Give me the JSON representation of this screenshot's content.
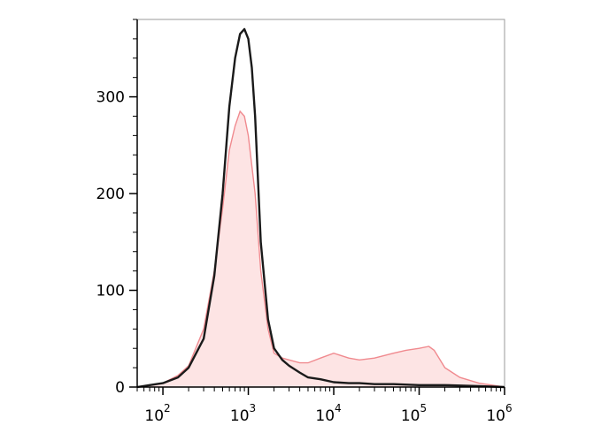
{
  "chart_data": {
    "type": "area",
    "title": "",
    "xlabel": "",
    "ylabel": "",
    "xscale": "log",
    "xlim": [
      50,
      1000000
    ],
    "ylim": [
      0,
      380
    ],
    "grid": false,
    "legend": "none",
    "y_ticks": [
      {
        "value": 0,
        "label": "0"
      },
      {
        "value": 100,
        "label": "100"
      },
      {
        "value": 200,
        "label": "200"
      },
      {
        "value": 300,
        "label": "300"
      }
    ],
    "x_ticks": [
      {
        "value": 100,
        "base": "10",
        "exp": "2"
      },
      {
        "value": 1000,
        "base": "10",
        "exp": "3"
      },
      {
        "value": 10000,
        "base": "10",
        "exp": "4"
      },
      {
        "value": 100000,
        "base": "10",
        "exp": "5"
      },
      {
        "value": 1000000,
        "base": "10",
        "exp": "6"
      }
    ],
    "series": [
      {
        "style": "filled",
        "color": "#f08a8f",
        "fill": "#fde4e4",
        "x": [
          50,
          70,
          100,
          150,
          200,
          300,
          400,
          500,
          600,
          700,
          800,
          900,
          1000,
          1200,
          1400,
          1700,
          2000,
          2500,
          3000,
          4000,
          5000,
          7000,
          10000,
          15000,
          20000,
          30000,
          50000,
          70000,
          100000,
          130000,
          150000,
          200000,
          300000,
          500000,
          1000000
        ],
        "y": [
          0,
          2,
          4,
          12,
          22,
          60,
          120,
          185,
          245,
          270,
          285,
          280,
          260,
          200,
          120,
          60,
          35,
          30,
          28,
          25,
          25,
          30,
          35,
          30,
          28,
          30,
          35,
          38,
          40,
          42,
          38,
          20,
          10,
          4,
          0
        ]
      },
      {
        "style": "line",
        "color": "#1a1a1a",
        "x": [
          50,
          70,
          100,
          150,
          200,
          300,
          400,
          500,
          600,
          700,
          800,
          900,
          1000,
          1100,
          1200,
          1400,
          1700,
          2000,
          2500,
          3000,
          4000,
          5000,
          7000,
          10000,
          15000,
          20000,
          30000,
          50000,
          100000,
          200000,
          500000,
          1000000
        ],
        "y": [
          0,
          2,
          4,
          10,
          20,
          50,
          115,
          200,
          290,
          340,
          365,
          370,
          360,
          330,
          280,
          150,
          70,
          40,
          28,
          22,
          15,
          10,
          8,
          5,
          4,
          4,
          3,
          3,
          2,
          2,
          1,
          0
        ]
      }
    ]
  }
}
